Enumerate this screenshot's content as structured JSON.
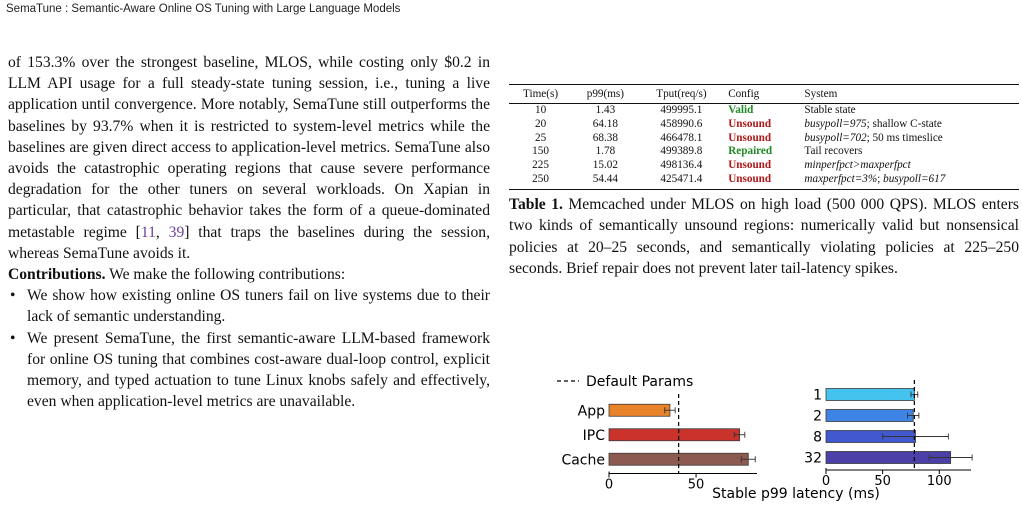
{
  "header": {
    "running_title": "SemaTune : Semantic-Aware Online OS Tuning with Large Language Models"
  },
  "left": {
    "para1": {
      "before_cite": "of 153.3% over the strongest baseline, MLOS, while costing only $0.2 in LLM API usage for a full steady-state tuning session, i.e., tuning a live application until convergence. More notably, SemaTune still outperforms the baselines by 93.7% when it is restricted to system-level metrics while the baselines are given direct access to application-level metrics. SemaTune also avoids the catastrophic operating regions that cause severe performance degradation for the other tuners on several workloads. On Xapian in particular, that catastrophic behavior takes the form of a queue-dominated metastable regime [",
      "cite_a": "11",
      "cite_sep": ", ",
      "cite_b": "39",
      "after_cite": "] that traps the baselines during the session, whereas SemaTune avoids it."
    },
    "contrib_heading": "Contributions.",
    "contrib_intro": " We make the following contributions:",
    "contributions": [
      "We show how existing online OS tuners fail on live systems due to their lack of semantic understanding.",
      "We present SemaTune, the first semantic-aware LLM-based framework for online OS tuning that combines cost-aware dual-loop control, explicit memory, and typed actuation to tune Linux knobs safely and effectively, even when application-level metrics are unavailable."
    ]
  },
  "table1": {
    "headers": [
      "Time(s)",
      "p99(ms)",
      "Tput(req/s)",
      "Config",
      "System"
    ],
    "rows": [
      {
        "time": "10",
        "p99": "1.43",
        "tput": "499995.1",
        "config": "Valid",
        "status": "valid",
        "sys_it1": "",
        "sys_mid": "Stable state",
        "sys_it2": "",
        "sys_end": ""
      },
      {
        "time": "20",
        "p99": "64.18",
        "tput": "458990.6",
        "config": "Unsound",
        "status": "unsound",
        "sys_it1": "busypoll=975",
        "sys_mid": "; shallow C-state",
        "sys_it2": "",
        "sys_end": ""
      },
      {
        "time": "25",
        "p99": "68.38",
        "tput": "466478.1",
        "config": "Unsound",
        "status": "unsound",
        "sys_it1": "busypoll=702",
        "sys_mid": "; 50 ms timeslice",
        "sys_it2": "",
        "sys_end": ""
      },
      {
        "time": "150",
        "p99": "1.78",
        "tput": "499389.8",
        "config": "Repaired",
        "status": "repaired",
        "sys_it1": "",
        "sys_mid": "Tail recovers",
        "sys_it2": "",
        "sys_end": ""
      },
      {
        "time": "225",
        "p99": "15.02",
        "tput": "498136.4",
        "config": "Unsound",
        "status": "unsound",
        "sys_it1": "minperfpct>maxperfpct",
        "sys_mid": "",
        "sys_it2": "",
        "sys_end": ""
      },
      {
        "time": "250",
        "p99": "54.44",
        "tput": "425471.4",
        "config": "Unsound",
        "status": "unsound",
        "sys_it1": "maxperfpct=3%",
        "sys_mid": "; ",
        "sys_it2": "busypoll=617",
        "sys_end": ""
      }
    ],
    "caption_label": "Table 1.",
    "caption_text": " Memcached under MLOS on high load (500 000 QPS). MLOS enters two kinds of semantically unsound regions: numerically valid but nonsensical policies at 20–25 seconds, and semantically violating policies at 225–250 seconds. Brief repair does not prevent later tail-latency spikes."
  },
  "colors": {
    "valid": "#1f8a25",
    "unsound": "#b01818",
    "citation": "#6b3f9a"
  },
  "chart_data": {
    "type": "bar",
    "orientation": "horizontal",
    "xlabel": "Stable p99 latency (ms)",
    "reference_line": {
      "label": "Default Params",
      "style": "dashed"
    },
    "panels": [
      {
        "name": "left",
        "categories": [
          "App",
          "IPC",
          "Cache"
        ],
        "values": [
          35,
          75,
          80
        ],
        "error": [
          3,
          3,
          4
        ],
        "colors": [
          "#e8832a",
          "#c9332c",
          "#8c5a4e"
        ],
        "reference_value": 40,
        "xlim": [
          0,
          85
        ],
        "xticks": [
          0,
          50
        ]
      },
      {
        "name": "right",
        "categories": [
          "1",
          "2",
          "8",
          "32"
        ],
        "values": [
          78,
          77,
          79,
          110
        ],
        "error": [
          3,
          5,
          29,
          19
        ],
        "colors": [
          "#45c3ef",
          "#3d84e4",
          "#4158cf",
          "#4a40a8"
        ],
        "reference_value": 78,
        "xlim": [
          0,
          128
        ],
        "xticks": [
          0,
          50,
          100
        ]
      }
    ]
  }
}
